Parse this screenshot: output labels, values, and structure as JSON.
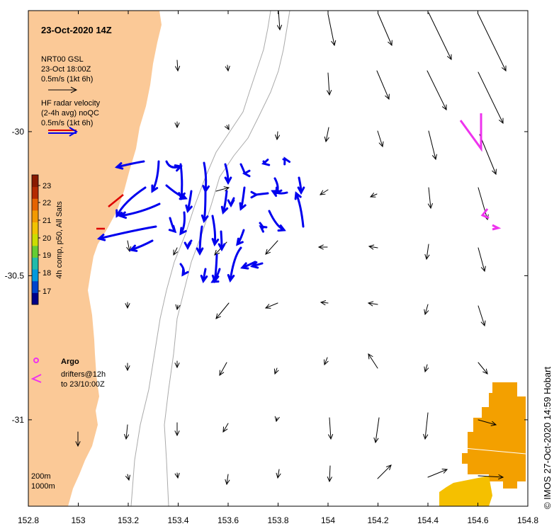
{
  "title": "23-Oct-2020 14Z",
  "gsl_legend": {
    "line1": "NRT00 GSL",
    "line2": "23-Oct 18:00Z",
    "line3": "0.5m/s (1kt 6h)"
  },
  "hf_legend": {
    "line1": "HF radar velocity",
    "line2": "(2-4h avg) noQC",
    "line3": "0.5m/s (1kt 6h)"
  },
  "colorbar": {
    "label": "4h comp, p50, All Sats",
    "ticks": [
      "17",
      "18",
      "19",
      "20",
      "21",
      "22",
      "23"
    ],
    "colors": [
      "#000088",
      "#0044cc",
      "#0099dd",
      "#22bbaa",
      "#66cc33",
      "#ccdd00",
      "#f2c300",
      "#f39a00",
      "#e56300",
      "#b52a00",
      "#8a1a00"
    ]
  },
  "argo_label": "Argo",
  "drifters": {
    "line1": "drifters@12h",
    "line2": "to 23/10:00Z"
  },
  "isobaths": {
    "line1": "200m",
    "line2": "1000m"
  },
  "credit": "© IMOS 27-Oct-2020 14:59 Hobart",
  "x_axis": {
    "ticks": [
      "152.8",
      "153",
      "153.2",
      "153.4",
      "153.6",
      "153.8",
      "154",
      "154.2",
      "154.4",
      "154.6",
      "154.8"
    ],
    "values": [
      152.8,
      153.0,
      153.2,
      153.4,
      153.6,
      153.8,
      154.0,
      154.2,
      154.4,
      154.6,
      154.8
    ],
    "range": [
      152.8,
      154.8
    ]
  },
  "y_axis": {
    "ticks": [
      "-30",
      "-30.5",
      "-31"
    ],
    "values": [
      -30.0,
      -30.5,
      -31.0
    ],
    "range": [
      -31.3,
      -29.58
    ]
  },
  "colors": {
    "land": "#fbc997",
    "hf_arrows": "#0000ee",
    "gsl_arrows": "#000000",
    "drifter": "#ee33ee",
    "isobath": "#aaaaaa",
    "sst_orange": "#f3a000",
    "sst_yellow": "#f5c000"
  }
}
